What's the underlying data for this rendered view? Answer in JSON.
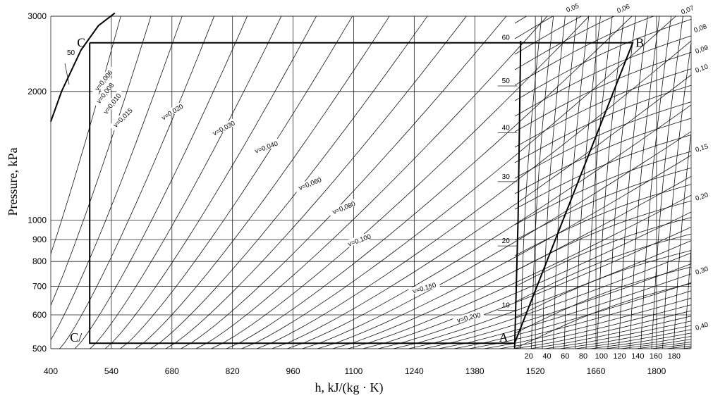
{
  "chart_data": {
    "type": "diagram",
    "y_axis": {
      "label": "Pressure, kPa",
      "scale": "log",
      "range": [
        500,
        3000
      ],
      "ticks": [
        "3000",
        "2000",
        "1000",
        "900",
        "800",
        "700",
        "600",
        "500"
      ]
    },
    "x_axis": {
      "label": "h, kJ/(kg · K)",
      "range": [
        400,
        1880
      ],
      "ticks": [
        "400",
        "540",
        "680",
        "820",
        "960",
        "1100",
        "1240",
        "1380",
        "1520",
        "1660",
        "1800"
      ]
    },
    "temperature_ticks": [
      "20",
      "40",
      "60",
      "80",
      "100",
      "120",
      "140",
      "160",
      "180"
    ],
    "saturation_temperatures": [
      "60",
      "50",
      "40",
      "30",
      "20",
      "10"
    ],
    "liquid_isotherm_label": "50",
    "liquid_specific_volume_labels": [
      "v=0,006",
      "v=0,008",
      "v=0,010",
      "v=0,015",
      "v=0,020",
      "v=0,030",
      "v=0,040",
      "v=0,060",
      "v=0,080",
      "v=0,100",
      "v=0,150",
      "v=0,200"
    ],
    "vapor_specific_volume_labels": [
      "0,05",
      "0,06",
      "0,07",
      "0,08",
      "0,09",
      "0,10",
      "0,15",
      "0,20",
      "0,30",
      "0,40"
    ],
    "cycle_points": [
      {
        "label": "C",
        "h": 490,
        "p": 2600
      },
      {
        "label": "B",
        "h": 1745,
        "p": 2600
      },
      {
        "label": "A",
        "h": 1472,
        "p": 515
      },
      {
        "label": "C/",
        "h": 490,
        "p": 515
      }
    ],
    "cycle_path": [
      "C",
      "B",
      "A",
      "C/",
      "C"
    ]
  }
}
